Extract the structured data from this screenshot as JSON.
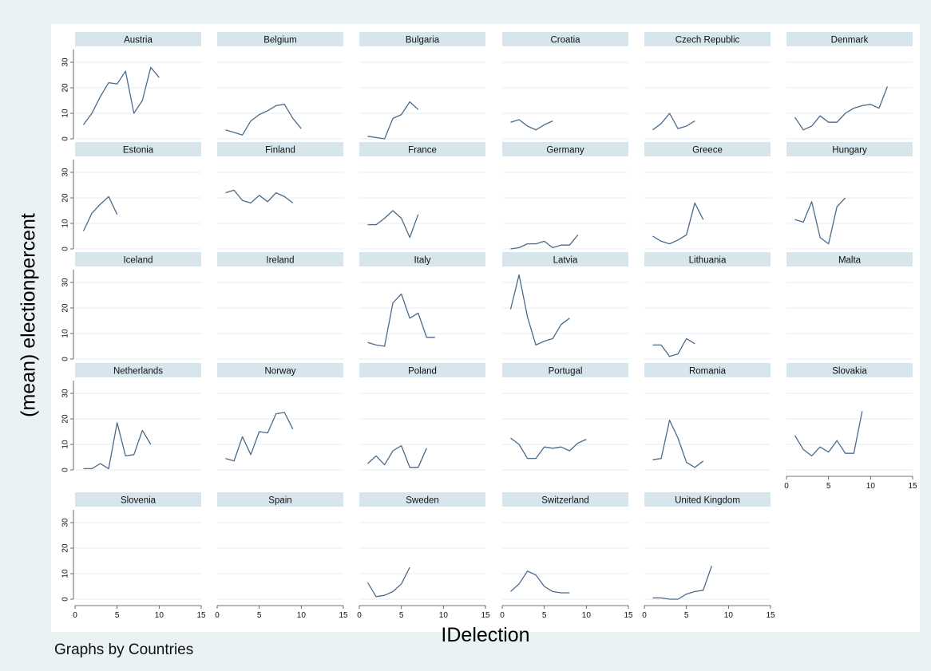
{
  "figure": {
    "ylabel": "(mean) electionpercent",
    "xlabel": "IDelection",
    "note": "Graphs by Countries"
  },
  "colors": {
    "background": "#eaf2f3",
    "plot_background": "#ffffff",
    "strip": "#d6e6ec",
    "line": "#4a6a8c",
    "grid": "#e6eef2"
  },
  "chart_data": {
    "type": "line",
    "layout": "small-multiples",
    "columns": 6,
    "xlim": [
      0,
      15
    ],
    "ylim": [
      0,
      35
    ],
    "x_ticks": [
      0,
      5,
      10,
      15
    ],
    "y_ticks": [
      0,
      10,
      20,
      30
    ],
    "grid": true,
    "panels": [
      {
        "name": "Austria",
        "y": [
          5.5,
          10,
          16.5,
          22,
          21.5,
          26.5,
          10,
          15,
          28,
          24
        ]
      },
      {
        "name": "Belgium",
        "y": [
          3.5,
          2.5,
          1.5,
          7,
          9.5,
          11,
          13,
          13.5,
          8,
          4
        ]
      },
      {
        "name": "Bulgaria",
        "y": [
          1,
          0.5,
          0,
          8,
          9.5,
          14.5,
          11.5
        ]
      },
      {
        "name": "Croatia",
        "y": [
          6.5,
          7.5,
          5,
          3.5,
          5.5,
          7
        ]
      },
      {
        "name": "Czech Republic",
        "y": [
          3.5,
          6,
          10,
          4,
          5,
          7
        ]
      },
      {
        "name": "Denmark",
        "y": [
          8.5,
          3.5,
          5,
          9,
          6.5,
          6.5,
          10,
          12,
          13,
          13.5,
          12,
          20.5
        ]
      },
      {
        "name": "Estonia",
        "y": [
          7,
          14,
          17.5,
          20.5,
          13.5
        ]
      },
      {
        "name": "Finland",
        "y": [
          22,
          23,
          19,
          18,
          21,
          18.5,
          22,
          20.5,
          18
        ]
      },
      {
        "name": "France",
        "y": [
          9.5,
          9.5,
          12,
          15,
          12,
          4.5,
          13.5
        ]
      },
      {
        "name": "Germany",
        "y": [
          0,
          0.5,
          2,
          2,
          3,
          0.5,
          1.5,
          1.5,
          5.5
        ]
      },
      {
        "name": "Greece",
        "y": [
          5,
          3,
          2,
          3.5,
          5.5,
          18,
          11.5
        ]
      },
      {
        "name": "Hungary",
        "y": [
          11.5,
          10.5,
          18.5,
          4.5,
          2,
          16.5,
          20
        ]
      },
      {
        "name": "Iceland",
        "y": []
      },
      {
        "name": "Ireland",
        "y": []
      },
      {
        "name": "Italy",
        "y": [
          6.5,
          5.5,
          5,
          22,
          25.5,
          16,
          18,
          8.5,
          8.5
        ]
      },
      {
        "name": "Latvia",
        "y": [
          19.5,
          33,
          16.5,
          5.5,
          7,
          8,
          13.5,
          16
        ]
      },
      {
        "name": "Lithuania",
        "y": [
          5.5,
          5.5,
          1,
          2,
          8,
          6
        ]
      },
      {
        "name": "Malta",
        "y": []
      },
      {
        "name": "Netherlands",
        "y": [
          0.5,
          0.5,
          2.5,
          0.5,
          18.5,
          5.5,
          6,
          15.5,
          10
        ]
      },
      {
        "name": "Norway",
        "y": [
          4.5,
          3.5,
          13,
          6,
          15,
          14.5,
          22,
          22.5,
          16
        ]
      },
      {
        "name": "Poland",
        "y": [
          2.5,
          5.5,
          2,
          7.5,
          9.5,
          1,
          1,
          8.5
        ]
      },
      {
        "name": "Portugal",
        "y": [
          12.5,
          10,
          4.5,
          4.5,
          9,
          8.5,
          9,
          7.5,
          10.5,
          12
        ]
      },
      {
        "name": "Romania",
        "y": [
          4,
          4.5,
          19.5,
          12.5,
          3,
          1,
          3.5
        ]
      },
      {
        "name": "Slovakia",
        "y": [
          13.5,
          8,
          5.5,
          9,
          7,
          11.5,
          6.5,
          6.5,
          23
        ]
      },
      {
        "name": "Slovenia",
        "y": []
      },
      {
        "name": "Spain",
        "y": []
      },
      {
        "name": "Sweden",
        "y": [
          6.5,
          1,
          1.5,
          3,
          6,
          12.5
        ]
      },
      {
        "name": "Switzerland",
        "y": [
          3,
          6,
          11,
          9.5,
          5,
          3,
          2.5,
          2.5
        ]
      },
      {
        "name": "United Kingdom",
        "y": [
          0.5,
          0.5,
          0,
          0,
          2,
          3,
          3.5,
          13
        ]
      }
    ]
  }
}
